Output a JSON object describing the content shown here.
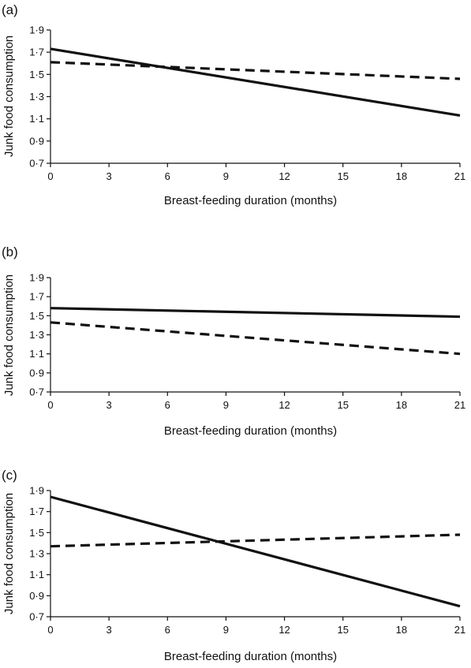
{
  "chart_data": [
    {
      "type": "line",
      "panel_label": "(a)",
      "xlabel": "Breast-feeding duration (months)",
      "ylabel": "Junk food consumption",
      "xlim": [
        0,
        21
      ],
      "ylim": [
        0.7,
        1.9
      ],
      "x_ticks": [
        "0",
        "3",
        "6",
        "9",
        "12",
        "15",
        "18",
        "21"
      ],
      "y_ticks": [
        "0·7",
        "0·9",
        "1·1",
        "1·3",
        "1·5",
        "1·7",
        "1·9"
      ],
      "grid": false,
      "series": [
        {
          "style": "solid",
          "x": [
            0,
            21
          ],
          "values": [
            1.73,
            1.13
          ]
        },
        {
          "style": "dashed",
          "x": [
            0,
            21
          ],
          "values": [
            1.61,
            1.46
          ]
        }
      ]
    },
    {
      "type": "line",
      "panel_label": "(b)",
      "xlabel": "Breast-feeding duration (months)",
      "ylabel": "Junk food consumption",
      "xlim": [
        0,
        21
      ],
      "ylim": [
        0.7,
        1.9
      ],
      "x_ticks": [
        "0",
        "3",
        "6",
        "9",
        "12",
        "15",
        "18",
        "21"
      ],
      "y_ticks": [
        "0·7",
        "0·9",
        "1·1",
        "1·3",
        "1·5",
        "1·7",
        "1·9"
      ],
      "grid": false,
      "series": [
        {
          "style": "solid",
          "x": [
            0,
            21
          ],
          "values": [
            1.58,
            1.49
          ]
        },
        {
          "style": "dashed",
          "x": [
            0,
            21
          ],
          "values": [
            1.43,
            1.1
          ]
        }
      ]
    },
    {
      "type": "line",
      "panel_label": "(c)",
      "xlabel": "Breast-feeding duration (months)",
      "ylabel": "Junk food consumption",
      "xlim": [
        0,
        21
      ],
      "ylim": [
        0.7,
        1.9
      ],
      "x_ticks": [
        "0",
        "3",
        "6",
        "9",
        "12",
        "15",
        "18",
        "21"
      ],
      "y_ticks": [
        "0·7",
        "0·9",
        "1·1",
        "1·3",
        "1·5",
        "1·7",
        "1·9"
      ],
      "grid": false,
      "series": [
        {
          "style": "solid",
          "x": [
            0,
            21
          ],
          "values": [
            1.84,
            0.8
          ]
        },
        {
          "style": "dashed",
          "x": [
            0,
            21
          ],
          "values": [
            1.37,
            1.48
          ]
        }
      ]
    }
  ]
}
